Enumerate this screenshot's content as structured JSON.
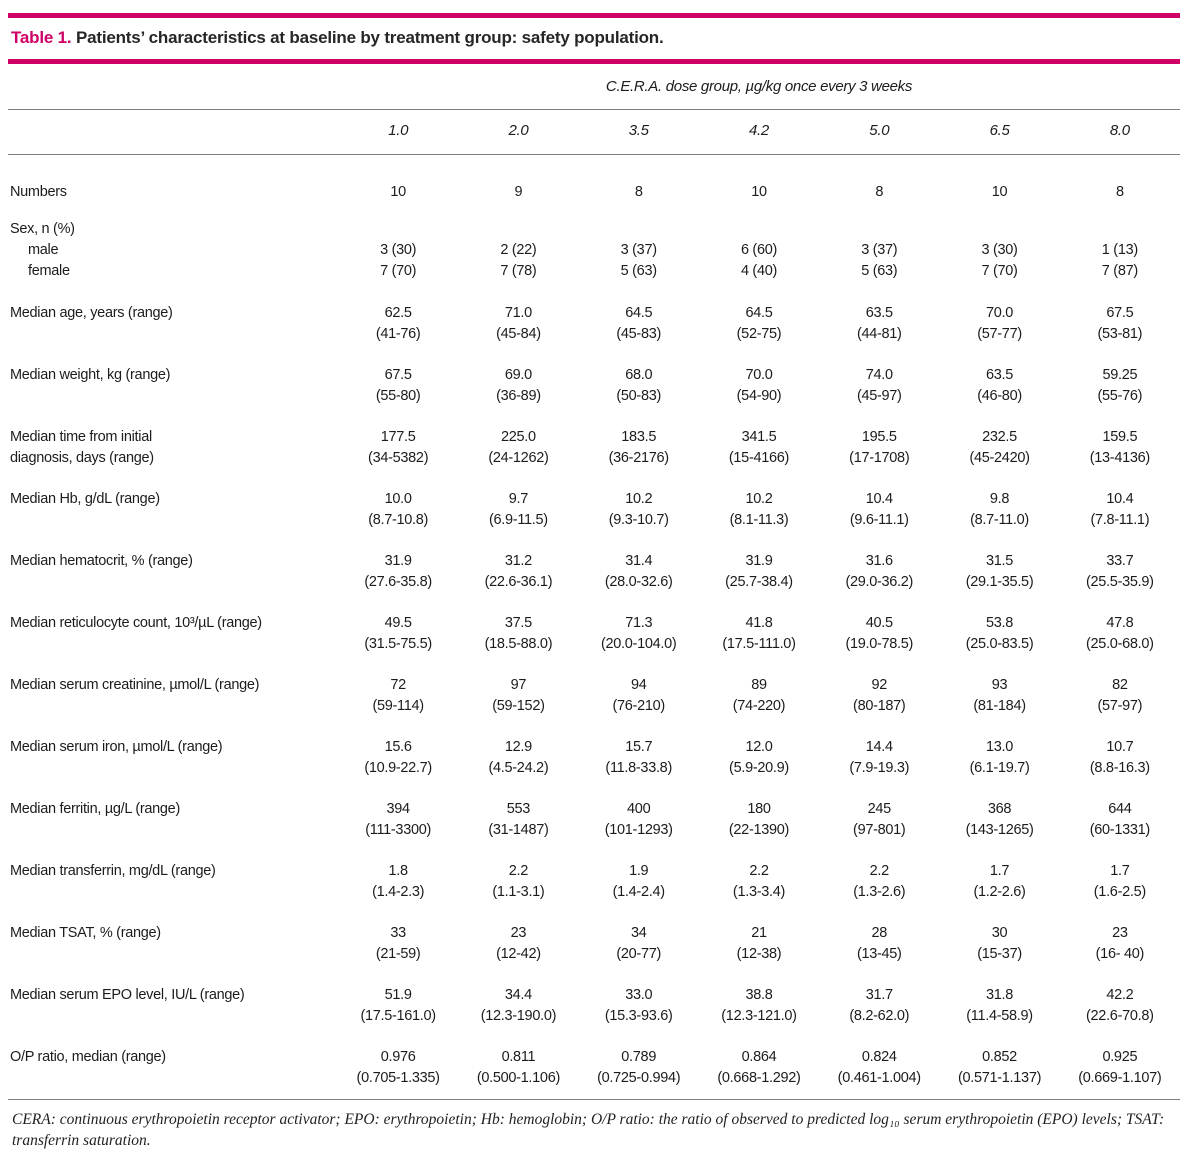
{
  "title": {
    "label": "Table 1.",
    "text": "Patients’ characteristics at baseline by treatment group: safety population."
  },
  "header": {
    "group_label": "C.E.R.A. dose group, µg/kg once every 3 weeks",
    "doses": [
      "1.0",
      "2.0",
      "3.5",
      "4.2",
      "5.0",
      "6.5",
      "8.0"
    ]
  },
  "rows": [
    {
      "label": "Numbers",
      "values": [
        "10",
        "9",
        "8",
        "10",
        "8",
        "10",
        "8"
      ]
    },
    {
      "label": "Sex, n (%)",
      "subrows": [
        {
          "label": "male",
          "values": [
            "3 (30)",
            "2 (22)",
            "3 (37)",
            "6 (60)",
            "3 (37)",
            "3 (30)",
            "1 (13)"
          ]
        },
        {
          "label": "female",
          "values": [
            "7 (70)",
            "7 (78)",
            "5 (63)",
            "4 (40)",
            "5 (63)",
            "7 (70)",
            "7 (87)"
          ]
        }
      ]
    },
    {
      "label": "Median age, years (range)",
      "values": [
        "62.5",
        "71.0",
        "64.5",
        "64.5",
        "63.5",
        "70.0",
        "67.5"
      ],
      "ranges": [
        "(41-76)",
        "(45-84)",
        "(45-83)",
        "(52-75)",
        "(44-81)",
        "(57-77)",
        "(53-81)"
      ]
    },
    {
      "label": "Median weight, kg (range)",
      "values": [
        "67.5",
        "69.0",
        "68.0",
        "70.0",
        "74.0",
        "63.5",
        "59.25"
      ],
      "ranges": [
        "(55-80)",
        "(36-89)",
        "(50-83)",
        "(54-90)",
        "(45-97)",
        "(46-80)",
        "(55-76)"
      ]
    },
    {
      "label": "Median time from initial\ndiagnosis, days (range)",
      "values": [
        "177.5",
        "225.0",
        "183.5",
        "341.5",
        "195.5",
        "232.5",
        "159.5"
      ],
      "ranges": [
        "(34-5382)",
        "(24-1262)",
        "(36-2176)",
        "(15-4166)",
        "(17-1708)",
        "(45-2420)",
        "(13-4136)"
      ]
    },
    {
      "label": "Median Hb, g/dL (range)",
      "values": [
        "10.0",
        "9.7",
        "10.2",
        "10.2",
        "10.4",
        "9.8",
        "10.4"
      ],
      "ranges": [
        "(8.7-10.8)",
        "(6.9-11.5)",
        "(9.3-10.7)",
        "(8.1-11.3)",
        "(9.6-11.1)",
        "(8.7-11.0)",
        "(7.8-11.1)"
      ]
    },
    {
      "label": "Median hematocrit, % (range)",
      "values": [
        "31.9",
        "31.2",
        "31.4",
        "31.9",
        "31.6",
        "31.5",
        "33.7"
      ],
      "ranges": [
        "(27.6-35.8)",
        "(22.6-36.1)",
        "(28.0-32.6)",
        "(25.7-38.4)",
        "(29.0-36.2)",
        "(29.1-35.5)",
        "(25.5-35.9)"
      ]
    },
    {
      "label": "Median reticulocyte count, 10³/µL (range)",
      "values": [
        "49.5",
        "37.5",
        "71.3",
        "41.8",
        "40.5",
        "53.8",
        "47.8"
      ],
      "ranges": [
        "(31.5-75.5)",
        "(18.5-88.0)",
        "(20.0-104.0)",
        "(17.5-111.0)",
        "(19.0-78.5)",
        "(25.0-83.5)",
        "(25.0-68.0)"
      ]
    },
    {
      "label": "Median serum creatinine, µmol/L (range)",
      "values": [
        "72",
        "97",
        "94",
        "89",
        "92",
        "93",
        "82"
      ],
      "ranges": [
        "(59-114)",
        "(59-152)",
        "(76-210)",
        "(74-220)",
        "(80-187)",
        "(81-184)",
        "(57-97)"
      ]
    },
    {
      "label": "Median serum iron, µmol/L (range)",
      "values": [
        "15.6",
        "12.9",
        "15.7",
        "12.0",
        "14.4",
        "13.0",
        "10.7"
      ],
      "ranges": [
        "(10.9-22.7)",
        "(4.5-24.2)",
        "(11.8-33.8)",
        "(5.9-20.9)",
        "(7.9-19.3)",
        "(6.1-19.7)",
        "(8.8-16.3)"
      ]
    },
    {
      "label": "Median ferritin, µg/L (range)",
      "values": [
        "394",
        "553",
        "400",
        "180",
        "245",
        "368",
        "644"
      ],
      "ranges": [
        "(111-3300)",
        "(31-1487)",
        "(101-1293)",
        "(22-1390)",
        "(97-801)",
        "(143-1265)",
        "(60-1331)"
      ]
    },
    {
      "label": "Median transferrin, mg/dL (range)",
      "values": [
        "1.8",
        "2.2",
        "1.9",
        "2.2",
        "2.2",
        "1.7",
        "1.7"
      ],
      "ranges": [
        "(1.4-2.3)",
        "(1.1-3.1)",
        "(1.4-2.4)",
        "(1.3-3.4)",
        "(1.3-2.6)",
        "(1.2-2.6)",
        "(1.6-2.5)"
      ]
    },
    {
      "label": "Median TSAT, % (range)",
      "values": [
        "33",
        "23",
        "34",
        "21",
        "28",
        "30",
        "23"
      ],
      "ranges": [
        "(21-59)",
        "(12-42)",
        "(20-77)",
        "(12-38)",
        "(13-45)",
        "(15-37)",
        "(16- 40)"
      ]
    },
    {
      "label": "Median serum EPO level, IU/L (range)",
      "values": [
        "51.9",
        "34.4",
        "33.0",
        "38.8",
        "31.7",
        "31.8",
        "42.2"
      ],
      "ranges": [
        "(17.5-161.0)",
        "(12.3-190.0)",
        "(15.3-93.6)",
        "(12.3-121.0)",
        "(8.2-62.0)",
        "(11.4-58.9)",
        "(22.6-70.8)"
      ]
    },
    {
      "label": "O/P ratio, median (range)",
      "values": [
        "0.976",
        "0.811",
        "0.789",
        "0.864",
        "0.824",
        "0.852",
        "0.925"
      ],
      "ranges": [
        "(0.705-1.335)",
        "(0.500-1.106)",
        "(0.725-0.994)",
        "(0.668-1.292)",
        "(0.461-1.004)",
        "(0.571-1.137)",
        "(0.669-1.107)"
      ]
    }
  ],
  "footnote": "CERA: continuous erythropoietin receptor activator; EPO: erythropoietin; Hb: hemoglobin; O/P ratio: the ratio of observed to predicted log₁₀ serum erythropoietin (EPO) levels; TSAT: transferrin saturation.",
  "colors": {
    "accent": "#cf0166",
    "rule_gray": "#7c7c7c",
    "text": "#1c1c1c"
  }
}
